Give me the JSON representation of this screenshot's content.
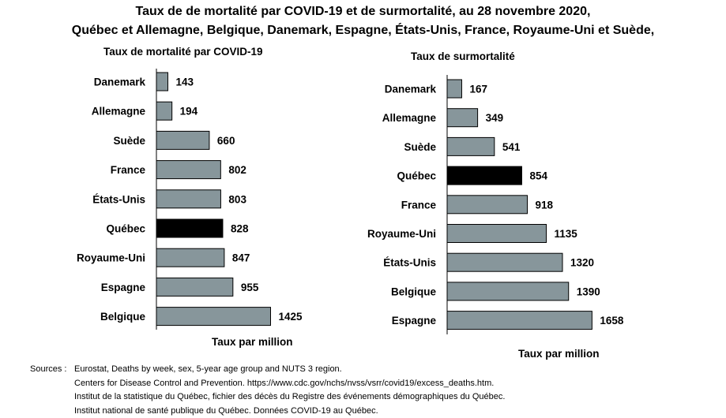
{
  "title_line1": "Taux de de mortalité par COVID-19 et de surmortalité, au 28 novembre 2020,",
  "title_line2": "Québec et Allemagne, Belgique, Danemark, Espagne, États-Unis, France, Royaume-Uni et Suède,",
  "chart_data": [
    {
      "type": "bar",
      "orientation": "horizontal",
      "title": "Taux de mortalité par COVID-19",
      "xlabel": "Taux par million",
      "categories": [
        "Danemark",
        "Allemagne",
        "Suède",
        "France",
        "États-Unis",
        "Québec",
        "Royaume-Uni",
        "Espagne",
        "Belgique"
      ],
      "values": [
        143,
        194,
        660,
        802,
        803,
        828,
        847,
        955,
        1425
      ],
      "highlight": "Québec",
      "colors": {
        "bar": "#87969b",
        "highlight": "#000000"
      },
      "grid": false,
      "legend": "none"
    },
    {
      "type": "bar",
      "orientation": "horizontal",
      "title": "Taux de surmortalité",
      "xlabel": "Taux par million",
      "categories": [
        "Danemark",
        "Allemagne",
        "Suède",
        "Québec",
        "France",
        "Royaume-Uni",
        "États-Unis",
        "Belgique",
        "Espagne"
      ],
      "values": [
        167,
        349,
        541,
        854,
        918,
        1135,
        1320,
        1390,
        1658
      ],
      "highlight": "Québec",
      "colors": {
        "bar": "#87969b",
        "highlight": "#000000"
      },
      "grid": false,
      "legend": "none"
    }
  ],
  "sources": {
    "label": "Sources :",
    "lines": [
      "Eurostat, Deaths by week, sex, 5-year age group and NUTS 3 region.",
      "Centers for Disease Control and Prevention. https://www.cdc.gov/nchs/nvss/vsrr/covid19/excess_deaths.htm.",
      "Institut de la statistique du Québec, fichier des décès du Registre des événements démographiques du Québec.",
      "Institut national de santé publique du Québec. Données COVID-19 au Québec."
    ]
  }
}
